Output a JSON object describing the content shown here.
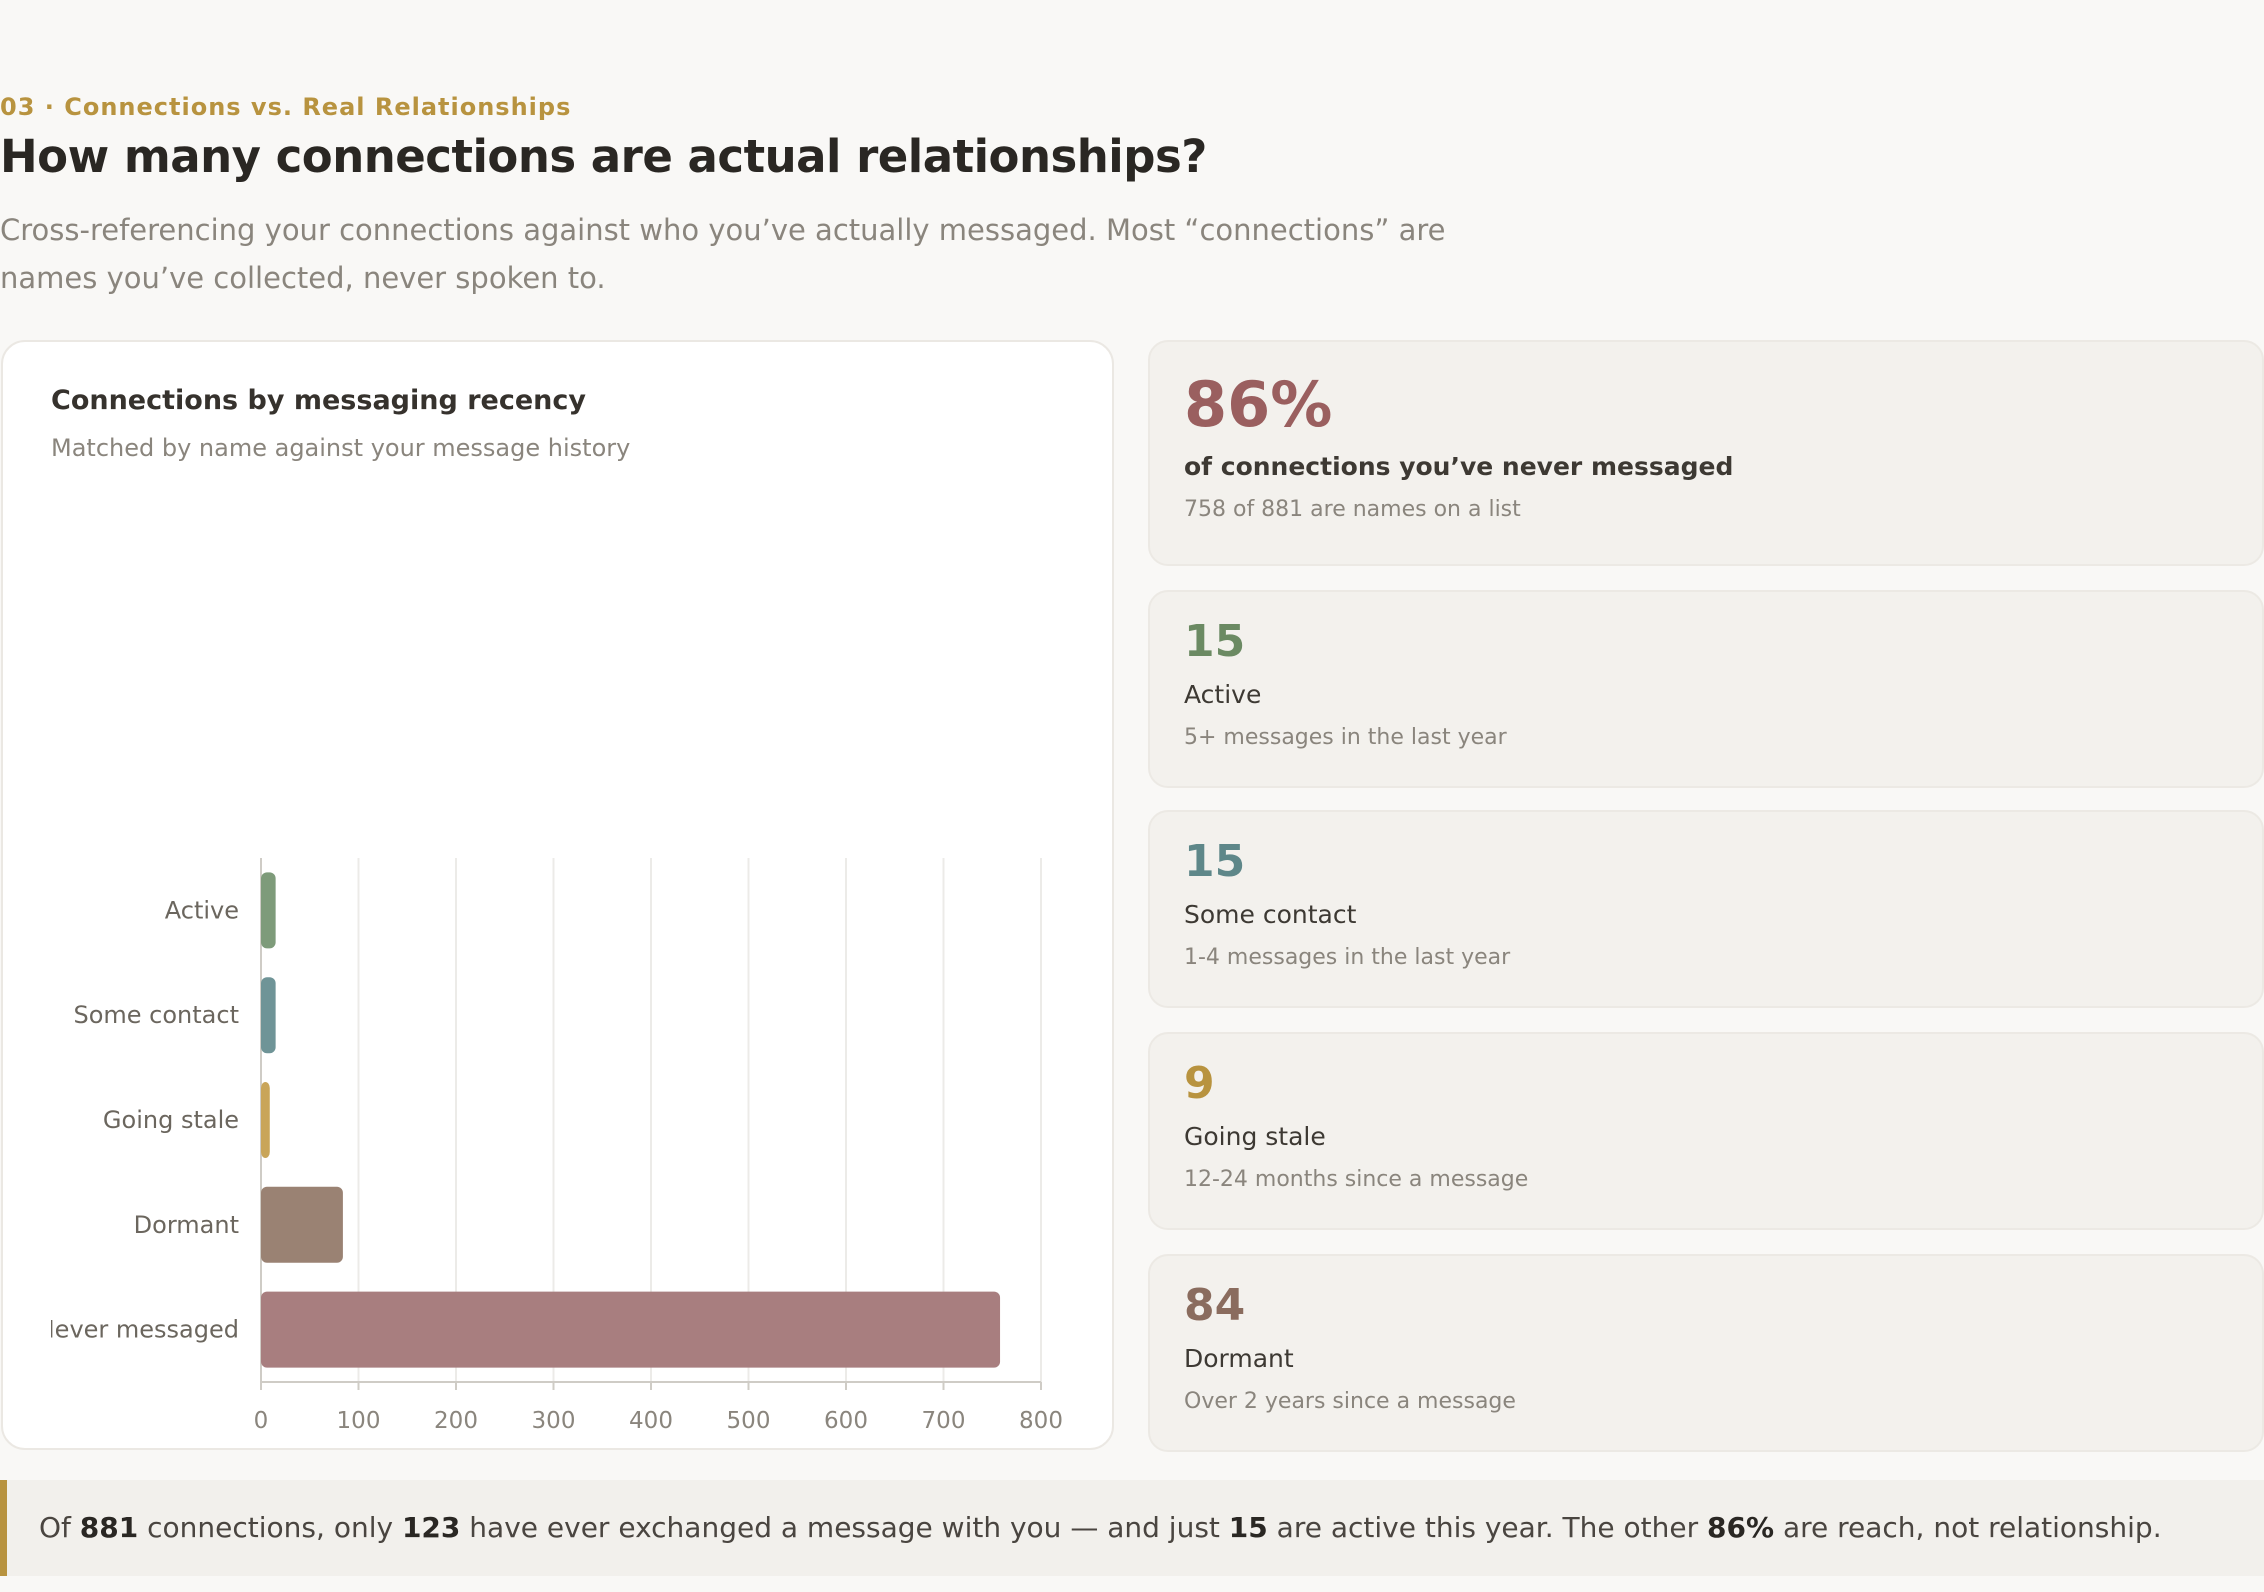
{
  "section": {
    "eyebrow": "03 · Connections vs. Real Relationships",
    "title": "How many connections are actual relationships?",
    "lede": "Cross-referencing your connections against who you’ve actually messaged. Most “connections” are names you’ve collected, never spoken to."
  },
  "chart_data": {
    "type": "bar",
    "orientation": "horizontal",
    "title": "Connections by messaging recency",
    "subtitle": "Matched by name against your message history",
    "categories": [
      "Active",
      "Some contact",
      "Going stale",
      "Dormant",
      "Never messaged"
    ],
    "values": [
      15,
      15,
      9,
      84,
      758
    ],
    "colors": [
      "#7e9b7a",
      "#6f9497",
      "#c9a559",
      "#9a8273",
      "#a87e7f"
    ],
    "xlim": [
      0,
      800
    ],
    "xticks": [
      "0",
      "100",
      "200",
      "300",
      "400",
      "500",
      "600",
      "700",
      "800"
    ],
    "grid": true,
    "xlabel": "",
    "ylabel": ""
  },
  "stats": {
    "headline": {
      "value": "86%",
      "label": "of connections you’ve never messaged",
      "desc": "758 of 881 are names on a list",
      "color": "#9a5f5f"
    },
    "items": [
      {
        "value": "15",
        "label": "Active",
        "desc": "5+ messages in the last year",
        "color": "#6b8a63"
      },
      {
        "value": "15",
        "label": "Some contact",
        "desc": "1-4 messages in the last year",
        "color": "#5e8789"
      },
      {
        "value": "9",
        "label": "Going stale",
        "desc": "12-24 months since a message",
        "color": "#b8933f"
      },
      {
        "value": "84",
        "label": "Dormant",
        "desc": "Over 2 years since a message",
        "color": "#8a6c5e"
      }
    ]
  },
  "summary": {
    "t1": "Of ",
    "total": "881",
    "t2": " connections, only ",
    "messaged": "123",
    "t3": " have ever exchanged a message with you — and just ",
    "active": "15",
    "t4": " are active this year. The other ",
    "pct": "86%",
    "t5": " are reach, not relationship."
  }
}
